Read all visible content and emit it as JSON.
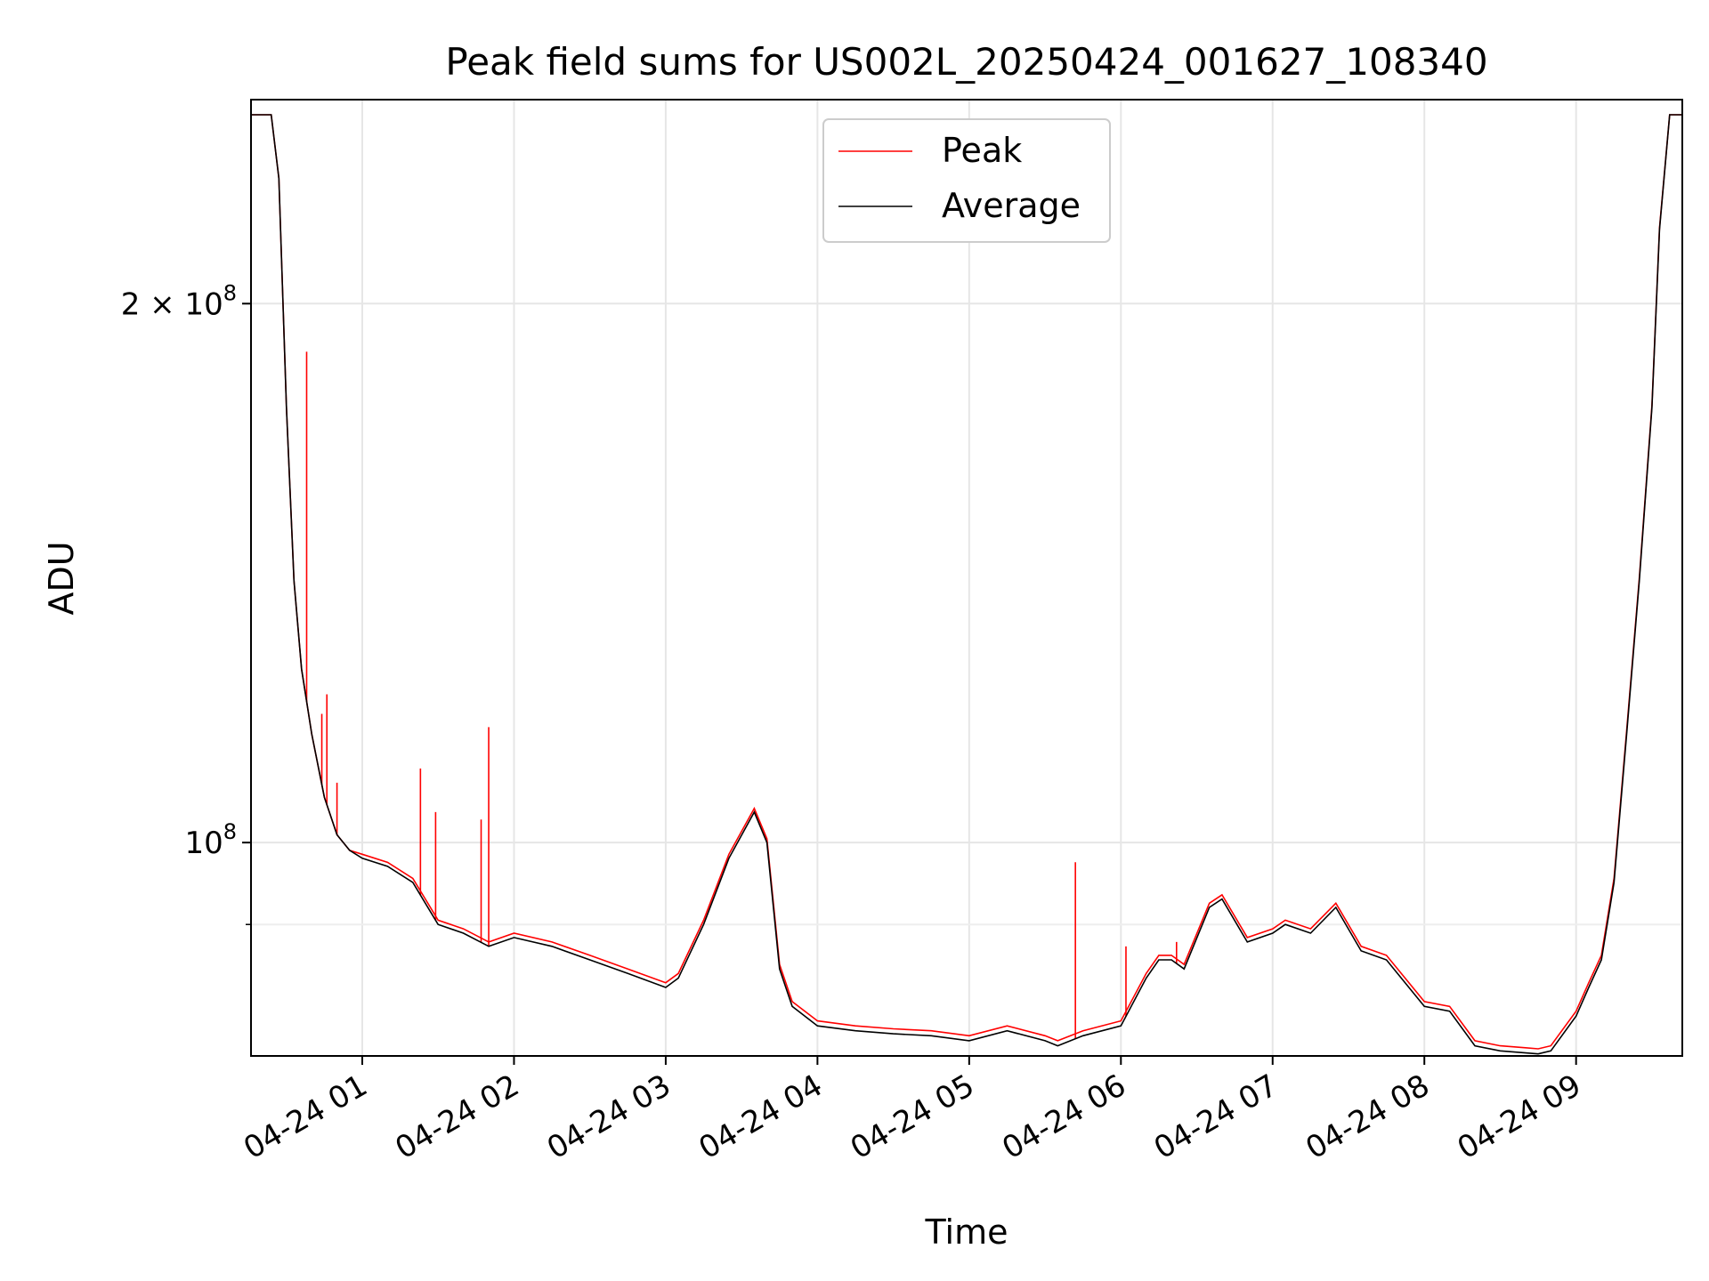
{
  "chart_data": {
    "type": "line",
    "title": "Peak field sums for US002L_20250424_001627_108340",
    "xlabel": "Time",
    "ylabel": "ADU",
    "yscale": "log",
    "xlim": [
      "2025-04-24 00:16",
      "2025-04-24 09:42"
    ],
    "ylim": [
      76000000,
      260000000
    ],
    "x_ticks": [
      "04-24 01",
      "04-24 02",
      "04-24 03",
      "04-24 04",
      "04-24 05",
      "04-24 06",
      "04-24 07",
      "04-24 08",
      "04-24 09"
    ],
    "y_ticks": [
      {
        "value": 200000000,
        "mantissa": "2",
        "exponent": "8"
      },
      {
        "value": 100000000,
        "mantissa": "",
        "exponent": "8"
      }
    ],
    "y_minor_ticks": [
      90000000
    ],
    "grid": true,
    "legend_position": "top-center",
    "colors": {
      "Peak": "#ff0000",
      "Average": "#000000"
    },
    "series": [
      {
        "name": "Average",
        "x": [
          "2025-04-24 00:16",
          "2025-04-24 00:20",
          "2025-04-24 00:24",
          "2025-04-24 00:27",
          "2025-04-24 00:30",
          "2025-04-24 00:33",
          "2025-04-24 00:36",
          "2025-04-24 00:40",
          "2025-04-24 00:45",
          "2025-04-24 00:50",
          "2025-04-24 00:55",
          "2025-04-24 01:00",
          "2025-04-24 01:10",
          "2025-04-24 01:20",
          "2025-04-24 01:30",
          "2025-04-24 01:40",
          "2025-04-24 01:50",
          "2025-04-24 02:00",
          "2025-04-24 02:15",
          "2025-04-24 02:30",
          "2025-04-24 02:45",
          "2025-04-24 03:00",
          "2025-04-24 03:05",
          "2025-04-24 03:15",
          "2025-04-24 03:25",
          "2025-04-24 03:35",
          "2025-04-24 03:40",
          "2025-04-24 03:45",
          "2025-04-24 03:50",
          "2025-04-24 04:00",
          "2025-04-24 04:15",
          "2025-04-24 04:30",
          "2025-04-24 04:45",
          "2025-04-24 05:00",
          "2025-04-24 05:15",
          "2025-04-24 05:30",
          "2025-04-24 05:35",
          "2025-04-24 05:45",
          "2025-04-24 06:00",
          "2025-04-24 06:10",
          "2025-04-24 06:15",
          "2025-04-24 06:20",
          "2025-04-24 06:25",
          "2025-04-24 06:35",
          "2025-04-24 06:40",
          "2025-04-24 06:50",
          "2025-04-24 07:00",
          "2025-04-24 07:05",
          "2025-04-24 07:15",
          "2025-04-24 07:25",
          "2025-04-24 07:35",
          "2025-04-24 07:45",
          "2025-04-24 08:00",
          "2025-04-24 08:10",
          "2025-04-24 08:20",
          "2025-04-24 08:30",
          "2025-04-24 08:40",
          "2025-04-24 08:45",
          "2025-04-24 08:50",
          "2025-04-24 09:00",
          "2025-04-24 09:05",
          "2025-04-24 09:10",
          "2025-04-24 09:15",
          "2025-04-24 09:20",
          "2025-04-24 09:25",
          "2025-04-24 09:30",
          "2025-04-24 09:33",
          "2025-04-24 09:37",
          "2025-04-24 09:42"
        ],
        "values": [
          255000000,
          255000000,
          255000000,
          235000000,
          175000000,
          140000000,
          125000000,
          115000000,
          106000000,
          101000000,
          99000000,
          98000000,
          97000000,
          95000000,
          90000000,
          89000000,
          87500000,
          88500000,
          87500000,
          86000000,
          84500000,
          83000000,
          84000000,
          90000000,
          98000000,
          104000000,
          100000000,
          85000000,
          81000000,
          79000000,
          78500000,
          78200000,
          78000000,
          77500000,
          78500000,
          77500000,
          77000000,
          78000000,
          79000000,
          84000000,
          86000000,
          86000000,
          85000000,
          92000000,
          93000000,
          88000000,
          89000000,
          90000000,
          89000000,
          92000000,
          87000000,
          86000000,
          81000000,
          80500000,
          77000000,
          76500000,
          76300000,
          76200000,
          76500000,
          80000000,
          83000000,
          86000000,
          95000000,
          115000000,
          140000000,
          175000000,
          220000000,
          255000000,
          255000000
        ]
      },
      {
        "name": "Peak",
        "x": [
          "2025-04-24 00:16",
          "2025-04-24 00:20",
          "2025-04-24 00:24",
          "2025-04-24 00:27",
          "2025-04-24 00:30",
          "2025-04-24 00:33",
          "2025-04-24 00:36",
          "2025-04-24 00:40",
          "2025-04-24 00:45",
          "2025-04-24 00:50",
          "2025-04-24 00:55",
          "2025-04-24 01:00",
          "2025-04-24 01:10",
          "2025-04-24 01:20",
          "2025-04-24 01:30",
          "2025-04-24 01:40",
          "2025-04-24 01:50",
          "2025-04-24 02:00",
          "2025-04-24 02:15",
          "2025-04-24 02:30",
          "2025-04-24 02:45",
          "2025-04-24 03:00",
          "2025-04-24 03:05",
          "2025-04-24 03:15",
          "2025-04-24 03:25",
          "2025-04-24 03:35",
          "2025-04-24 03:40",
          "2025-04-24 03:45",
          "2025-04-24 03:50",
          "2025-04-24 04:00",
          "2025-04-24 04:15",
          "2025-04-24 04:30",
          "2025-04-24 04:45",
          "2025-04-24 05:00",
          "2025-04-24 05:15",
          "2025-04-24 05:30",
          "2025-04-24 05:35",
          "2025-04-24 05:45",
          "2025-04-24 06:00",
          "2025-04-24 06:10",
          "2025-04-24 06:15",
          "2025-04-24 06:20",
          "2025-04-24 06:25",
          "2025-04-24 06:35",
          "2025-04-24 06:40",
          "2025-04-24 06:50",
          "2025-04-24 07:00",
          "2025-04-24 07:05",
          "2025-04-24 07:15",
          "2025-04-24 07:25",
          "2025-04-24 07:35",
          "2025-04-24 07:45",
          "2025-04-24 08:00",
          "2025-04-24 08:10",
          "2025-04-24 08:20",
          "2025-04-24 08:30",
          "2025-04-24 08:40",
          "2025-04-24 08:45",
          "2025-04-24 08:50",
          "2025-04-24 09:00",
          "2025-04-24 09:05",
          "2025-04-24 09:10",
          "2025-04-24 09:15",
          "2025-04-24 09:20",
          "2025-04-24 09:25",
          "2025-04-24 09:30",
          "2025-04-24 09:33",
          "2025-04-24 09:37",
          "2025-04-24 09:42"
        ],
        "values": [
          255000000,
          255000000,
          255000000,
          235000000,
          175000000,
          140000000,
          125000000,
          115000000,
          106000000,
          101000000,
          99000000,
          98500000,
          97500000,
          95500000,
          90500000,
          89500000,
          88000000,
          89000000,
          88000000,
          86500000,
          85000000,
          83500000,
          84500000,
          90500000,
          98500000,
          104500000,
          100500000,
          85500000,
          81500000,
          79500000,
          79000000,
          78700000,
          78500000,
          78000000,
          79000000,
          78000000,
          77500000,
          78500000,
          79500000,
          84500000,
          86500000,
          86500000,
          85500000,
          92500000,
          93500000,
          88500000,
          89500000,
          90500000,
          89500000,
          92500000,
          87500000,
          86500000,
          81500000,
          81000000,
          77500000,
          77000000,
          76800000,
          76700000,
          77000000,
          80500000,
          83500000,
          86500000,
          95500000,
          115500000,
          140500000,
          175500000,
          220500000,
          255000000,
          255000000
        ],
        "spikes": [
          {
            "x": "2025-04-24 00:38",
            "value": 188000000
          },
          {
            "x": "2025-04-24 00:44",
            "value": 118000000
          },
          {
            "x": "2025-04-24 00:46",
            "value": 121000000
          },
          {
            "x": "2025-04-24 00:50",
            "value": 108000000
          },
          {
            "x": "2025-04-24 01:23",
            "value": 110000000
          },
          {
            "x": "2025-04-24 01:29",
            "value": 104000000
          },
          {
            "x": "2025-04-24 01:47",
            "value": 103000000
          },
          {
            "x": "2025-04-24 01:50",
            "value": 116000000
          },
          {
            "x": "2025-04-24 05:42",
            "value": 97500000
          },
          {
            "x": "2025-04-24 06:02",
            "value": 87500000
          },
          {
            "x": "2025-04-24 06:22",
            "value": 88000000
          }
        ]
      }
    ]
  }
}
